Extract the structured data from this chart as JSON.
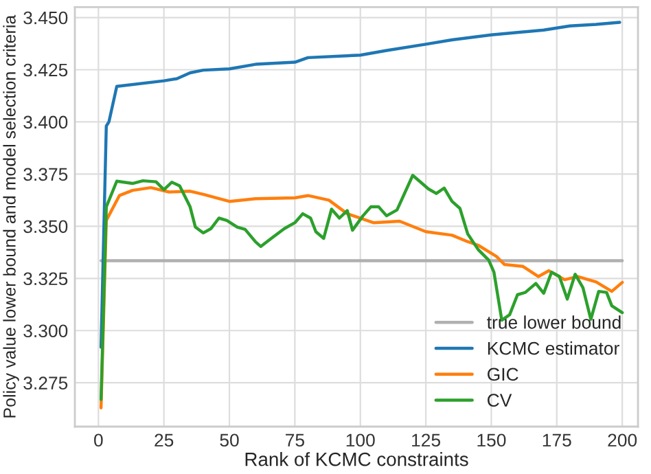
{
  "chart_data": {
    "type": "line",
    "xlabel": "Rank of KCMC constraints",
    "ylabel": "Policy value lower bound and model selection criteria",
    "xlim": [
      -9,
      206
    ],
    "xticks": [
      0,
      25,
      50,
      75,
      100,
      125,
      150,
      175,
      200
    ],
    "ylim": [
      3.254,
      3.455
    ],
    "yticks": [
      3.275,
      {
        "value": 3.3,
        "label": "3.300"
      },
      3.325,
      {
        "value": 3.35,
        "label": "3.350"
      },
      3.375,
      {
        "value": 3.4,
        "label": "3.400"
      },
      3.425,
      {
        "value": 3.45,
        "label": "3.450"
      }
    ],
    "grid": true,
    "legend": "bottom right",
    "marker": "none",
    "line_style": "solid",
    "series": [
      {
        "name": "true lower bound",
        "color": "#b0b0b0",
        "x": [
          1,
          200
        ],
        "values": [
          3.3335,
          3.3335
        ]
      },
      {
        "name": "KCMC estimator",
        "color": "#1f77b4",
        "x": [
          1,
          3,
          4,
          7,
          25,
          30,
          35,
          40,
          50,
          60,
          75,
          80,
          100,
          110,
          125,
          135,
          150,
          170,
          180,
          190,
          199
        ],
        "values": [
          3.292,
          3.398,
          3.4,
          3.417,
          3.4197,
          3.4207,
          3.4235,
          3.4248,
          3.4254,
          3.4276,
          3.4286,
          3.4308,
          3.432,
          3.4342,
          3.4372,
          3.4393,
          3.4417,
          3.444,
          3.446,
          3.4467,
          3.4477
        ]
      },
      {
        "name": "GIC",
        "color": "#ff7f0e",
        "x": [
          1,
          3,
          8,
          13,
          20,
          27,
          35,
          40,
          50,
          60,
          75,
          80,
          88,
          95,
          105,
          115,
          125,
          135,
          140,
          145,
          152,
          155,
          162,
          168,
          172,
          178,
          183,
          190,
          196,
          200
        ],
        "values": [
          3.263,
          3.3528,
          3.3647,
          3.3672,
          3.3685,
          3.3664,
          3.3668,
          3.3653,
          3.3619,
          3.3632,
          3.3636,
          3.3647,
          3.3625,
          3.356,
          3.3517,
          3.3524,
          3.3474,
          3.3457,
          3.3431,
          3.3409,
          3.3355,
          3.3317,
          3.3308,
          3.3259,
          3.3287,
          3.3244,
          3.3259,
          3.3233,
          3.3188,
          3.3231
        ]
      },
      {
        "name": "CV",
        "color": "#2ca02c",
        "x": [
          1,
          3,
          7,
          13,
          17,
          22,
          25,
          28,
          31,
          35,
          37,
          40,
          43,
          46,
          49,
          53,
          56,
          60,
          62,
          66,
          71,
          75,
          78,
          81,
          83,
          86,
          89,
          92,
          95,
          97,
          101,
          104,
          107,
          110,
          114,
          120,
          126,
          129,
          132,
          135,
          138,
          141,
          145,
          149,
          151,
          154,
          157,
          160,
          163,
          167,
          170,
          173,
          176,
          179,
          182,
          185,
          188,
          191,
          194,
          196,
          200
        ],
        "values": [
          3.267,
          3.3593,
          3.3716,
          3.3705,
          3.3718,
          3.3713,
          3.3675,
          3.3711,
          3.3694,
          3.3593,
          3.3496,
          3.3468,
          3.3489,
          3.3539,
          3.3528,
          3.3496,
          3.3485,
          3.3425,
          3.3403,
          3.3442,
          3.3489,
          3.3517,
          3.356,
          3.3539,
          3.3474,
          3.3442,
          3.3582,
          3.3539,
          3.3575,
          3.3481,
          3.355,
          3.3593,
          3.3593,
          3.355,
          3.3578,
          3.3744,
          3.3679,
          3.3657,
          3.3683,
          3.3619,
          3.3586,
          3.3463,
          3.3388,
          3.3338,
          3.328,
          3.305,
          3.3076,
          3.3172,
          3.3183,
          3.3226,
          3.3179,
          3.328,
          3.3259,
          3.3151,
          3.327,
          3.3205,
          3.3054,
          3.3188,
          3.3183,
          3.3119,
          3.3086
        ]
      }
    ]
  }
}
